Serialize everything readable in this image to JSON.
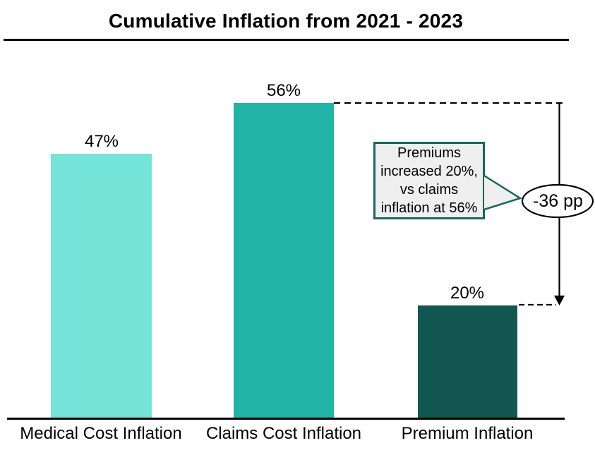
{
  "title": "Cumulative Inflation from 2021 - 2023",
  "chart_data": {
    "type": "bar",
    "title": "Cumulative Inflation from 2021 - 2023",
    "categories": [
      "Medical Cost Inflation",
      "Claims Cost Inflation",
      "Premium Inflation"
    ],
    "values": [
      47,
      56,
      20
    ],
    "value_labels": [
      "47%",
      "56%",
      "20%"
    ],
    "bar_colors": [
      "#74E3D8",
      "#21B3A6",
      "#115750"
    ],
    "xlabel": "",
    "ylabel": "",
    "ylim": [
      0,
      60
    ],
    "grid": false,
    "legend": false,
    "annotations": {
      "callout_lines": [
        "Premiums",
        "increased 20%,",
        "vs claims",
        "inflation at 56%"
      ],
      "difference_label": "-36 pp",
      "difference_from_value": 56,
      "difference_to_value": 20
    }
  },
  "colors": {
    "callout_border": "#1E655B",
    "callout_background": "#EFEFEF",
    "connector": "#000000",
    "ellipse_fill": "#FFFFFF",
    "ellipse_border": "#000000"
  }
}
